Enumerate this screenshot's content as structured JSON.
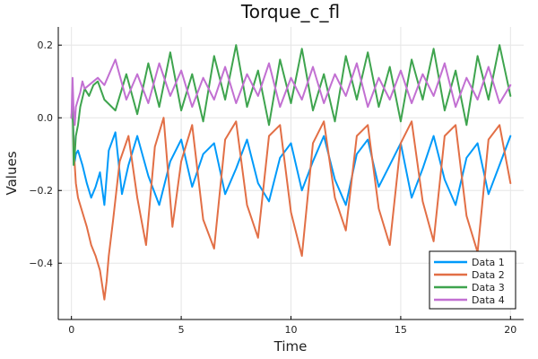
{
  "chart_data": {
    "type": "line",
    "title": "Torque_c_fl",
    "xlabel": "Time",
    "ylabel": "Values",
    "xlim": [
      -0.6,
      20.6
    ],
    "ylim": [
      -0.555,
      0.25
    ],
    "xticks": [
      0,
      5,
      10,
      15,
      20
    ],
    "xtick_labels": [
      "0",
      "5",
      "10",
      "15",
      "20"
    ],
    "yticks": [
      -0.4,
      -0.2,
      0.0,
      0.2
    ],
    "ytick_labels": [
      "−0.4",
      "−0.2",
      "0.0",
      "0.2"
    ],
    "grid": true,
    "legend_position": "bottom-right",
    "series": [
      {
        "name": "Data 1",
        "color": "#009AFA",
        "x": [
          0,
          0.05,
          0.1,
          0.15,
          0.2,
          0.3,
          0.5,
          0.7,
          0.9,
          1.1,
          1.3,
          1.5,
          1.7,
          2.0,
          2.3,
          2.6,
          3.0,
          3.5,
          4.0,
          4.5,
          5.0,
          5.5,
          6.0,
          6.5,
          7.0,
          7.5,
          8.0,
          8.5,
          9.0,
          9.5,
          10.0,
          10.5,
          11.0,
          11.5,
          12.0,
          12.5,
          13.0,
          13.5,
          14.0,
          14.5,
          15.0,
          15.5,
          16.0,
          16.5,
          17.0,
          17.5,
          18.0,
          18.5,
          19.0,
          19.5,
          20.0
        ],
        "y": [
          0.0,
          0.02,
          -0.05,
          -0.12,
          -0.1,
          -0.09,
          -0.13,
          -0.18,
          -0.22,
          -0.19,
          -0.15,
          -0.24,
          -0.09,
          -0.04,
          -0.21,
          -0.13,
          -0.05,
          -0.16,
          -0.24,
          -0.12,
          -0.06,
          -0.19,
          -0.1,
          -0.07,
          -0.21,
          -0.14,
          -0.06,
          -0.18,
          -0.23,
          -0.11,
          -0.07,
          -0.2,
          -0.12,
          -0.05,
          -0.17,
          -0.24,
          -0.1,
          -0.06,
          -0.19,
          -0.13,
          -0.07,
          -0.22,
          -0.14,
          -0.05,
          -0.17,
          -0.24,
          -0.11,
          -0.07,
          -0.21,
          -0.13,
          -0.05
        ]
      },
      {
        "name": "Data 2",
        "color": "#E26F46",
        "x": [
          0,
          0.05,
          0.1,
          0.2,
          0.3,
          0.5,
          0.7,
          0.9,
          1.1,
          1.3,
          1.5,
          1.6,
          1.7,
          1.9,
          2.2,
          2.6,
          3.0,
          3.4,
          3.8,
          4.2,
          4.6,
          5.0,
          5.5,
          6.0,
          6.5,
          7.0,
          7.5,
          8.0,
          8.5,
          9.0,
          9.5,
          10.0,
          10.5,
          11.0,
          11.5,
          12.0,
          12.5,
          13.0,
          13.5,
          14.0,
          14.5,
          15.0,
          15.5,
          16.0,
          16.5,
          17.0,
          17.5,
          18.0,
          18.5,
          19.0,
          19.5,
          20.0
        ],
        "y": [
          0.0,
          0.05,
          -0.08,
          -0.18,
          -0.22,
          -0.26,
          -0.3,
          -0.35,
          -0.38,
          -0.42,
          -0.5,
          -0.45,
          -0.38,
          -0.28,
          -0.12,
          -0.05,
          -0.22,
          -0.35,
          -0.08,
          0.0,
          -0.3,
          -0.12,
          -0.02,
          -0.28,
          -0.36,
          -0.06,
          -0.01,
          -0.24,
          -0.33,
          -0.05,
          -0.02,
          -0.26,
          -0.38,
          -0.07,
          -0.01,
          -0.22,
          -0.31,
          -0.05,
          -0.02,
          -0.25,
          -0.35,
          -0.07,
          -0.01,
          -0.23,
          -0.34,
          -0.05,
          -0.02,
          -0.27,
          -0.37,
          -0.06,
          -0.02,
          -0.18
        ]
      },
      {
        "name": "Data 3",
        "color": "#3EA44E",
        "x": [
          0,
          0.05,
          0.1,
          0.15,
          0.2,
          0.3,
          0.4,
          0.6,
          0.8,
          1.0,
          1.2,
          1.5,
          2.0,
          2.5,
          3.0,
          3.5,
          4.0,
          4.5,
          5.0,
          5.5,
          6.0,
          6.5,
          7.0,
          7.5,
          8.0,
          8.5,
          9.0,
          9.5,
          10.0,
          10.5,
          11.0,
          11.5,
          12.0,
          12.5,
          13.0,
          13.5,
          14.0,
          14.5,
          15.0,
          15.5,
          16.0,
          16.5,
          17.0,
          17.5,
          18.0,
          18.5,
          19.0,
          19.5,
          20.0
        ],
        "y": [
          0.0,
          0.05,
          -0.13,
          -0.1,
          -0.05,
          -0.02,
          0.03,
          0.08,
          0.06,
          0.09,
          0.1,
          0.05,
          0.02,
          0.12,
          0.01,
          0.15,
          0.03,
          0.18,
          0.02,
          0.12,
          -0.01,
          0.17,
          0.05,
          0.2,
          0.03,
          0.13,
          -0.02,
          0.16,
          0.04,
          0.19,
          0.02,
          0.12,
          -0.01,
          0.17,
          0.05,
          0.18,
          0.03,
          0.14,
          -0.01,
          0.16,
          0.05,
          0.19,
          0.02,
          0.13,
          -0.02,
          0.17,
          0.05,
          0.2,
          0.06
        ]
      },
      {
        "name": "Data 4",
        "color": "#C270D2",
        "x": [
          0,
          0.05,
          0.1,
          0.15,
          0.2,
          0.3,
          0.4,
          0.5,
          0.6,
          0.8,
          1.0,
          1.2,
          1.5,
          2.0,
          2.5,
          3.0,
          3.5,
          4.0,
          4.5,
          5.0,
          5.5,
          6.0,
          6.5,
          7.0,
          7.5,
          8.0,
          8.5,
          9.0,
          9.5,
          10.0,
          10.5,
          11.0,
          11.5,
          12.0,
          12.5,
          13.0,
          13.5,
          14.0,
          14.5,
          15.0,
          15.5,
          16.0,
          16.5,
          17.0,
          17.5,
          18.0,
          18.5,
          19.0,
          19.5,
          20.0
        ],
        "y": [
          0.0,
          0.11,
          0.02,
          -0.02,
          0.03,
          0.05,
          0.07,
          0.1,
          0.08,
          0.09,
          0.1,
          0.11,
          0.09,
          0.16,
          0.05,
          0.12,
          0.04,
          0.15,
          0.06,
          0.13,
          0.03,
          0.11,
          0.05,
          0.14,
          0.04,
          0.12,
          0.06,
          0.15,
          0.03,
          0.11,
          0.05,
          0.14,
          0.04,
          0.12,
          0.06,
          0.15,
          0.03,
          0.11,
          0.05,
          0.13,
          0.04,
          0.12,
          0.06,
          0.15,
          0.03,
          0.11,
          0.05,
          0.14,
          0.04,
          0.09
        ]
      }
    ]
  }
}
